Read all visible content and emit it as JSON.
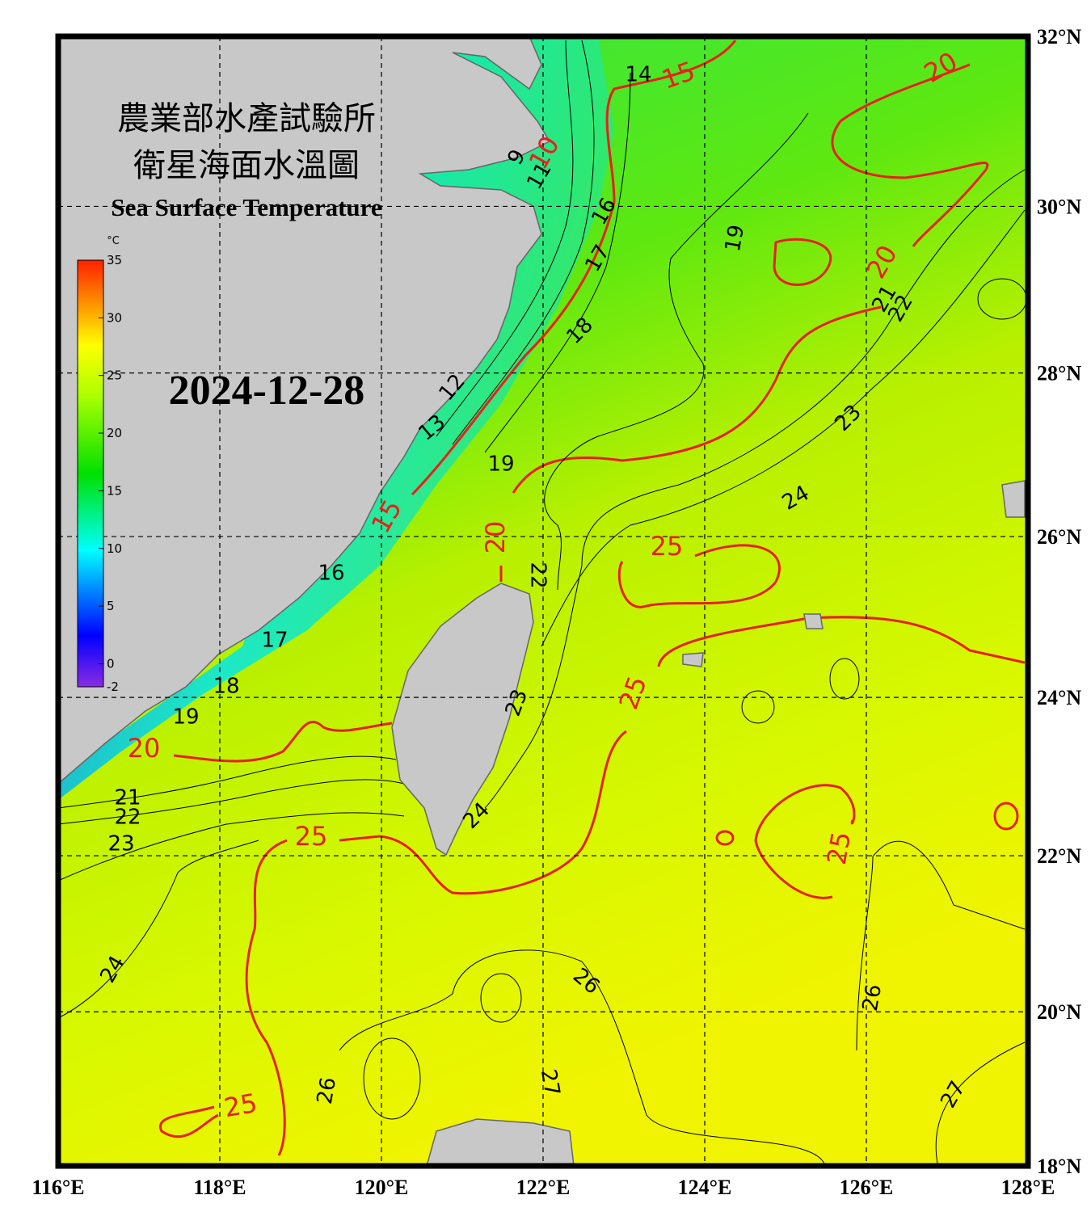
{
  "header": {
    "title_zh_1": "農業部水產試驗所",
    "title_zh_2": "衛星海面水溫圖",
    "title_en": "Sea Surface Temperature",
    "date": "2024-12-28"
  },
  "colorbar": {
    "unit": "°C",
    "range": [
      -2,
      35
    ],
    "ticks": [
      35,
      30,
      25,
      20,
      15,
      10,
      5,
      0,
      -2
    ]
  },
  "map": {
    "lon_range": [
      116,
      128
    ],
    "lat_range": [
      18,
      32
    ],
    "lon_ticks": [
      {
        "value": 116,
        "label": "116°E"
      },
      {
        "value": 118,
        "label": "118°E"
      },
      {
        "value": 120,
        "label": "120°E"
      },
      {
        "value": 122,
        "label": "122°E"
      },
      {
        "value": 124,
        "label": "124°E"
      },
      {
        "value": 126,
        "label": "126°E"
      },
      {
        "value": 128,
        "label": "128°E"
      }
    ],
    "lat_ticks": [
      {
        "value": 32,
        "label": "32°N"
      },
      {
        "value": 30,
        "label": "30°N"
      },
      {
        "value": 28,
        "label": "28°N"
      },
      {
        "value": 26,
        "label": "26°N"
      },
      {
        "value": 24,
        "label": "24°N"
      },
      {
        "value": 22,
        "label": "22°N"
      },
      {
        "value": 20,
        "label": "20°N"
      },
      {
        "value": 18,
        "label": "18°N"
      }
    ],
    "contour_labels": [
      14,
      9,
      11,
      16,
      17,
      18,
      19,
      21,
      22,
      23,
      24,
      12,
      13,
      19,
      22,
      16,
      17,
      18,
      19,
      21,
      22,
      23,
      23,
      24,
      24,
      26,
      26,
      26,
      27,
      27,
      15,
      20,
      10,
      20,
      15,
      20,
      25,
      25,
      20,
      25,
      25,
      25
    ]
  }
}
